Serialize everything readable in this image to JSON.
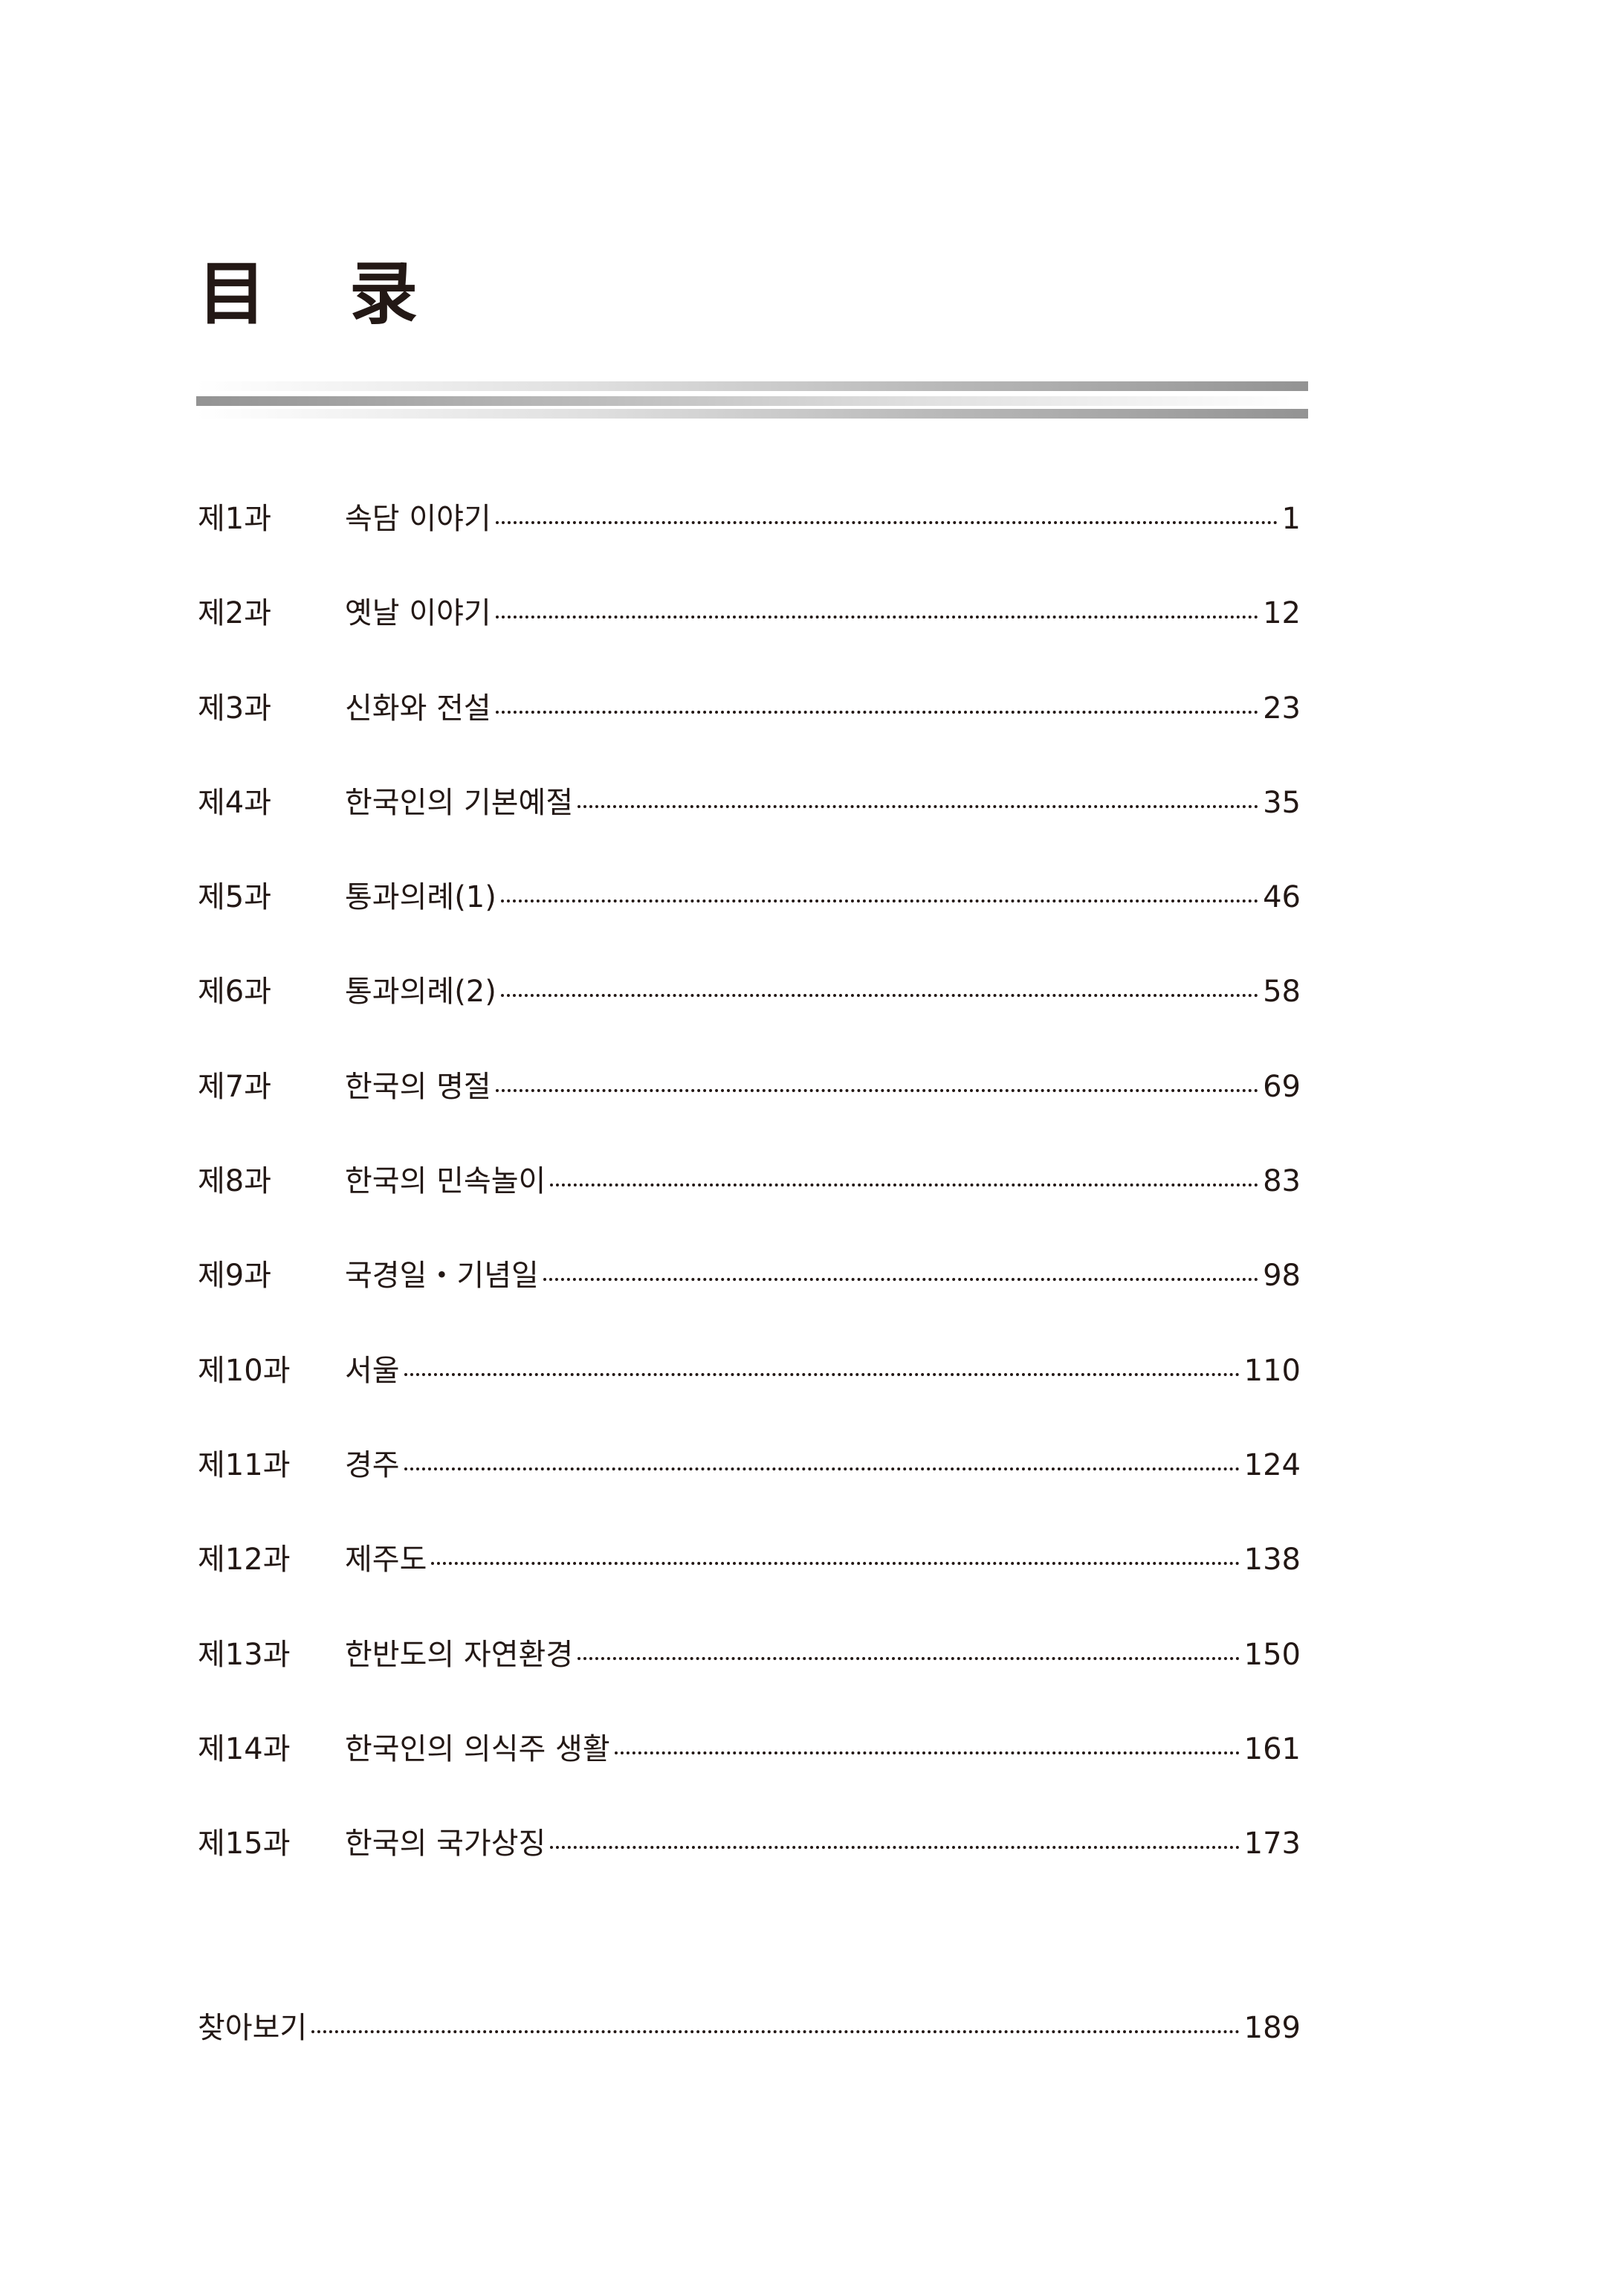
{
  "title": "目 录",
  "entries": [
    {
      "lesson": "제1과",
      "title": "속담 이야기",
      "page": "1"
    },
    {
      "lesson": "제2과",
      "title": "옛날 이야기",
      "page": "12"
    },
    {
      "lesson": "제3과",
      "title": "신화와 전설",
      "page": "23"
    },
    {
      "lesson": "제4과",
      "title": "한국인의 기본예절",
      "page": "35"
    },
    {
      "lesson": "제5과",
      "title": "통과의례(1)",
      "page": "46"
    },
    {
      "lesson": "제6과",
      "title": "통과의례(2)",
      "page": "58"
    },
    {
      "lesson": "제7과",
      "title": "한국의 명절",
      "page": "69"
    },
    {
      "lesson": "제8과",
      "title": "한국의 민속놀이",
      "page": "83"
    },
    {
      "lesson": "제9과",
      "title": "국경일・기념일",
      "page": "98"
    },
    {
      "lesson": "제10과",
      "title": "서울",
      "page": "110"
    },
    {
      "lesson": "제11과",
      "title": "경주",
      "page": "124"
    },
    {
      "lesson": "제12과",
      "title": "제주도",
      "page": "138"
    },
    {
      "lesson": "제13과",
      "title": "한반도의 자연환경",
      "page": "150"
    },
    {
      "lesson": "제14과",
      "title": "한국인의 의식주 생활",
      "page": "161"
    },
    {
      "lesson": "제15과",
      "title": "한국의 국가상징",
      "page": "173"
    }
  ],
  "index": {
    "title": "찾아보기",
    "page": "189"
  }
}
